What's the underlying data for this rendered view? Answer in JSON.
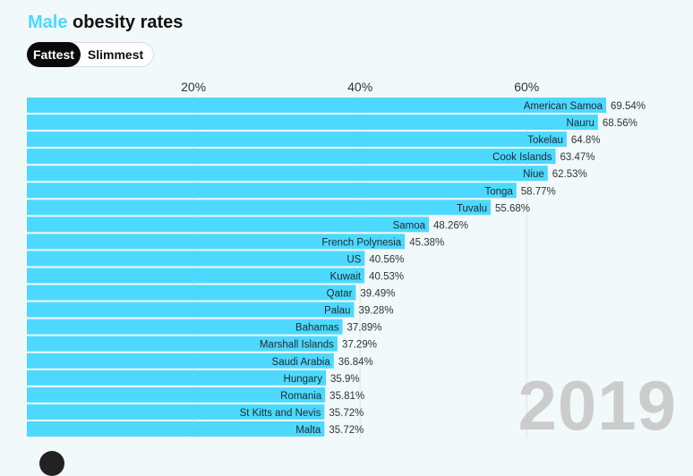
{
  "title": {
    "accent": "Male",
    "rest": "obesity rates"
  },
  "toggle": {
    "active": "Fattest",
    "inactive": "Slimmest"
  },
  "year": "2019",
  "chart_data": {
    "type": "bar",
    "orientation": "horizontal",
    "title": "Male obesity rates",
    "xlim": [
      0,
      70.4
    ],
    "x_ticks": [
      20,
      40,
      60
    ],
    "x_tick_labels": [
      "20%",
      "40%",
      "60%"
    ],
    "categories": [
      "American Samoa",
      "Nauru",
      "Tokelau",
      "Cook Islands",
      "Niue",
      "Tonga",
      "Tuvalu",
      "Samoa",
      "French Polynesia",
      "US",
      "Kuwait",
      "Qatar",
      "Palau",
      "Bahamas",
      "Marshall Islands",
      "Saudi Arabia",
      "Hungary",
      "Romania",
      "St Kitts and Nevis",
      "Malta"
    ],
    "values": [
      69.54,
      68.56,
      64.8,
      63.47,
      62.53,
      58.77,
      55.68,
      48.26,
      45.38,
      40.56,
      40.53,
      39.49,
      39.28,
      37.89,
      37.29,
      36.84,
      35.9,
      35.81,
      35.72,
      35.72
    ],
    "value_labels": [
      "69.54%",
      "68.56%",
      "64.8%",
      "63.47%",
      "62.53%",
      "58.77%",
      "55.68%",
      "48.26%",
      "45.38%",
      "40.56%",
      "40.53%",
      "39.49%",
      "39.28%",
      "37.89%",
      "37.29%",
      "36.84%",
      "35.9%",
      "35.81%",
      "35.72%",
      "35.72%"
    ],
    "bar_color": "#4dd9ff"
  }
}
